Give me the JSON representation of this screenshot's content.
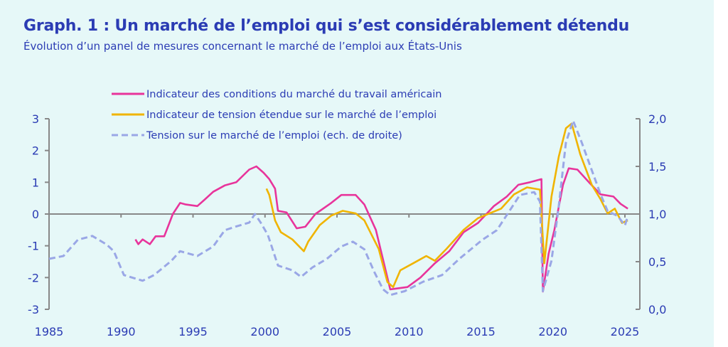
{
  "title": "Graph. 1 : Un marché de l’emploi qui s’est considérablement détendu",
  "subtitle": "Évolution d’un panel de mesures concernant le marché de l’emploi aux États-Unis",
  "chart_data": {
    "type": "line",
    "title": "Graph. 1 : Un marché de l’emploi qui s’est considérablement détendu",
    "subtitle": "Évolution d’un panel de mesures concernant le marché de l’emploi aux États-Unis",
    "xlim": [
      1985,
      2026
    ],
    "ylim": [
      -3,
      3
    ],
    "y2lim": [
      0,
      2
    ],
    "x_ticks": [
      "1985",
      "1990",
      "1995",
      "2000",
      "2005",
      "2010",
      "2015",
      "2020",
      "2025"
    ],
    "y_ticks": [
      "3",
      "2",
      "1",
      "0",
      "-1",
      "-2",
      "-3"
    ],
    "y2_ticks": [
      "2,0",
      "1,5",
      "1,0",
      "0,5",
      "0,0"
    ],
    "grid": false,
    "legend_position": "top",
    "colors": {
      "pink": "#e8349b",
      "gold": "#f0b400",
      "dashed": "#9aa7e6",
      "axis": "#888888",
      "text": "#2b3cb4",
      "background": "#e6f8f8"
    },
    "series": [
      {
        "name": "Indicateur des conditions du marché du travail américain",
        "axis": "left",
        "color": "#e8349b",
        "style": "solid",
        "x": [
          1991.0,
          1991.2,
          1991.5,
          1992.0,
          1992.4,
          1993.0,
          1993.3,
          1993.6,
          1994.1,
          1994.5,
          1995.3,
          1995.8,
          1996.4,
          1997.2,
          1998.0,
          1998.9,
          1999.4,
          1999.9,
          2000.3,
          2000.7,
          2000.9,
          2001.5,
          2002.2,
          2002.8,
          2003.5,
          2004.6,
          2005.3,
          2006.3,
          2006.9,
          2007.7,
          2008.7,
          2009.9,
          2010.8,
          2011.8,
          2012.8,
          2013.8,
          2014.8,
          2015.9,
          2016.8,
          2017.6,
          2018.4,
          2019.2,
          2019.3,
          2019.7,
          2020.1,
          2020.7,
          2021.1,
          2021.7,
          2022.5,
          2023.3,
          2024.2,
          2024.7,
          2025.2
        ],
        "y": [
          -0.8,
          -0.95,
          -0.8,
          -0.95,
          -0.7,
          -0.7,
          -0.35,
          0.0,
          0.35,
          0.3,
          0.25,
          0.45,
          0.7,
          0.9,
          1.0,
          1.4,
          1.5,
          1.3,
          1.1,
          0.8,
          0.1,
          0.05,
          -0.45,
          -0.4,
          0.0,
          0.35,
          0.6,
          0.6,
          0.3,
          -0.5,
          -2.37,
          -2.3,
          -2.0,
          -1.55,
          -1.17,
          -0.57,
          -0.28,
          0.25,
          0.55,
          0.92,
          1.0,
          1.1,
          -2.44,
          -1.25,
          -0.5,
          0.92,
          1.44,
          1.4,
          1.0,
          0.62,
          0.55,
          0.32,
          0.17
        ]
      },
      {
        "name": "Indicateur de tension étendue sur le marché de l’emploi",
        "axis": "left",
        "color": "#f0b400",
        "style": "solid",
        "x": [
          2000.1,
          2000.3,
          2000.7,
          2001.1,
          2001.9,
          2002.7,
          2003.0,
          2003.8,
          2004.6,
          2005.4,
          2006.3,
          2006.9,
          2007.9,
          2008.5,
          2008.9,
          2009.4,
          2010.3,
          2011.2,
          2011.8,
          2012.6,
          2013.8,
          2014.8,
          2015.6,
          2016.4,
          2017.3,
          2018.2,
          2019.1,
          2019.4,
          2019.9,
          2020.4,
          2020.9,
          2021.3,
          2021.9,
          2022.7,
          2023.3,
          2023.8,
          2024.3,
          2024.8,
          2025.2
        ],
        "y": [
          0.8,
          0.6,
          -0.2,
          -0.57,
          -0.8,
          -1.17,
          -0.87,
          -0.35,
          -0.05,
          0.1,
          0.02,
          -0.2,
          -1.1,
          -2.14,
          -2.3,
          -1.77,
          -1.55,
          -1.32,
          -1.47,
          -1.1,
          -0.5,
          -0.13,
          0.02,
          0.17,
          0.62,
          0.84,
          0.77,
          -1.55,
          0.55,
          1.8,
          2.7,
          2.85,
          1.88,
          0.92,
          0.47,
          0.02,
          0.17,
          -0.28,
          -0.2
        ]
      },
      {
        "name": "Tension sur le marché de l’emploi (ech. de droite)",
        "axis": "right",
        "color": "#9aa7e6",
        "style": "dashed",
        "x": [
          1985.0,
          1986.0,
          1987.0,
          1988.0,
          1989.0,
          1989.5,
          1990.2,
          1991.5,
          1992.3,
          1993.5,
          1994.1,
          1995.3,
          1996.4,
          1997.2,
          1998.0,
          1998.9,
          1999.3,
          1999.7,
          2000.2,
          2000.9,
          2001.9,
          2002.5,
          2003.3,
          2004.3,
          2005.3,
          2006.1,
          2006.9,
          2007.6,
          2008.2,
          2008.7,
          2009.7,
          2011.0,
          2012.3,
          2013.5,
          2014.3,
          2015.1,
          2016.1,
          2017.1,
          2017.7,
          2018.7,
          2019.1,
          2019.3,
          2019.9,
          2020.4,
          2020.9,
          2021.4,
          2022.0,
          2022.7,
          2023.3,
          2023.8,
          2024.5,
          2025.0,
          2025.2
        ],
        "y": [
          0.53,
          0.56,
          0.73,
          0.77,
          0.68,
          0.61,
          0.36,
          0.3,
          0.36,
          0.51,
          0.61,
          0.56,
          0.66,
          0.83,
          0.87,
          0.91,
          1.0,
          0.91,
          0.78,
          0.46,
          0.41,
          0.34,
          0.44,
          0.53,
          0.66,
          0.71,
          0.63,
          0.39,
          0.21,
          0.15,
          0.19,
          0.29,
          0.36,
          0.53,
          0.63,
          0.73,
          0.83,
          1.06,
          1.2,
          1.23,
          1.13,
          0.19,
          0.51,
          1.08,
          1.75,
          1.98,
          1.75,
          1.46,
          1.21,
          1.03,
          0.98,
          0.88,
          0.98
        ]
      }
    ]
  }
}
